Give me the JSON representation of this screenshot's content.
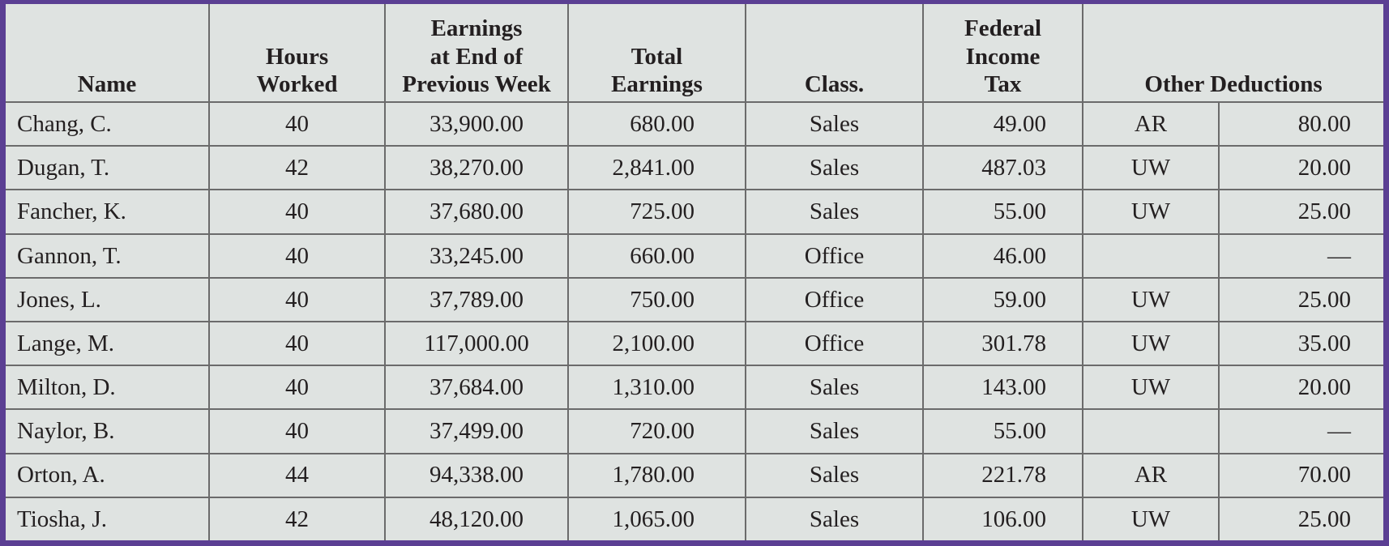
{
  "headers": {
    "name": "Name",
    "hours": [
      "Hours",
      "Worked"
    ],
    "prev": [
      "Earnings",
      "at End of",
      "Previous Week"
    ],
    "total": [
      "Total",
      "Earnings"
    ],
    "class": "Class.",
    "fit": [
      "Federal",
      "Income",
      "Tax"
    ],
    "other": "Other Deductions"
  },
  "rows": [
    {
      "name": "Chang, C.",
      "hours": "40",
      "prev": "33,900.00",
      "total": "680.00",
      "class": "Sales",
      "fit": "49.00",
      "code": "AR",
      "amount": "80.00"
    },
    {
      "name": "Dugan, T.",
      "hours": "42",
      "prev": "38,270.00",
      "total": "2,841.00",
      "class": "Sales",
      "fit": "487.03",
      "code": "UW",
      "amount": "20.00"
    },
    {
      "name": "Fancher, K.",
      "hours": "40",
      "prev": "37,680.00",
      "total": "725.00",
      "class": "Sales",
      "fit": "55.00",
      "code": "UW",
      "amount": "25.00"
    },
    {
      "name": "Gannon, T.",
      "hours": "40",
      "prev": "33,245.00",
      "total": "660.00",
      "class": "Office",
      "fit": "46.00",
      "code": "",
      "amount": "—"
    },
    {
      "name": "Jones, L.",
      "hours": "40",
      "prev": "37,789.00",
      "total": "750.00",
      "class": "Office",
      "fit": "59.00",
      "code": "UW",
      "amount": "25.00"
    },
    {
      "name": "Lange, M.",
      "hours": "40",
      "prev": "117,000.00",
      "total": "2,100.00",
      "class": "Office",
      "fit": "301.78",
      "code": "UW",
      "amount": "35.00"
    },
    {
      "name": "Milton, D.",
      "hours": "40",
      "prev": "37,684.00",
      "total": "1,310.00",
      "class": "Sales",
      "fit": "143.00",
      "code": "UW",
      "amount": "20.00"
    },
    {
      "name": "Naylor, B.",
      "hours": "40",
      "prev": "37,499.00",
      "total": "720.00",
      "class": "Sales",
      "fit": "55.00",
      "code": "",
      "amount": "—"
    },
    {
      "name": "Orton, A.",
      "hours": "44",
      "prev": "94,338.00",
      "total": "1,780.00",
      "class": "Sales",
      "fit": "221.78",
      "code": "AR",
      "amount": "70.00"
    },
    {
      "name": "Tiosha, J.",
      "hours": "42",
      "prev": "48,120.00",
      "total": "1,065.00",
      "class": "Sales",
      "fit": "106.00",
      "code": "UW",
      "amount": "25.00"
    }
  ]
}
